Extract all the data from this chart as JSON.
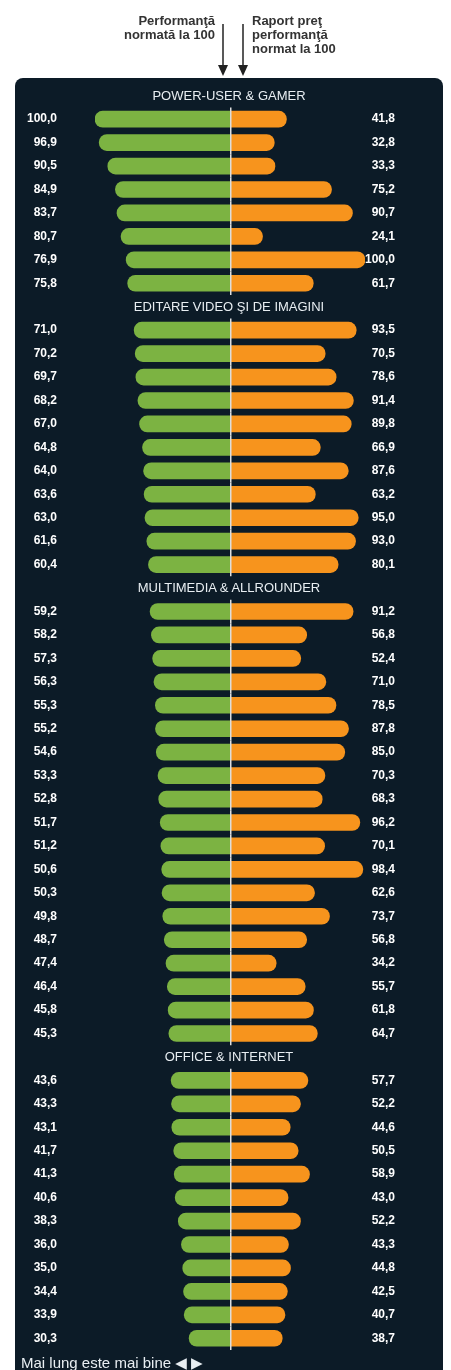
{
  "chart_data": [
    {
      "type": "bar",
      "orientation": "horizontal",
      "xlim": [
        100,
        0
      ],
      "legend": false,
      "categories": [
        "POWER-USER & GAMER",
        null,
        null,
        null,
        null,
        null,
        null,
        null,
        null,
        "EDITARE VIDEO ŞI DE IMAGINI",
        null,
        null,
        null,
        null,
        null,
        null,
        null,
        null,
        null,
        null,
        null,
        "MULTIMEDIA & ALLROUNDER",
        null,
        null,
        null,
        null,
        null,
        null,
        null,
        null,
        null,
        null,
        null,
        null,
        null,
        null,
        null,
        null,
        null,
        null,
        null,
        "OFFICE & INTERNET",
        null,
        null,
        null,
        null,
        null,
        null,
        null,
        null,
        null,
        null,
        null,
        null
      ],
      "series": [
        {
          "name": "Performanţă normată la 100",
          "color": "#7cb342",
          "values": [
            null,
            100.0,
            96.9,
            90.5,
            84.9,
            83.7,
            80.7,
            76.9,
            75.8,
            null,
            71.0,
            70.2,
            69.7,
            68.2,
            67.0,
            64.8,
            64.0,
            63.6,
            63.0,
            61.6,
            60.4,
            null,
            59.2,
            58.2,
            57.3,
            56.3,
            55.3,
            55.2,
            54.6,
            53.3,
            52.8,
            51.7,
            51.2,
            50.6,
            50.3,
            49.8,
            48.7,
            47.4,
            46.4,
            45.8,
            45.3,
            null,
            43.6,
            43.3,
            43.1,
            41.7,
            41.3,
            40.6,
            38.3,
            36.0,
            35.0,
            34.4,
            33.9,
            30.3
          ],
          "value_labels": [
            null,
            "100,0",
            "96,9",
            "90,5",
            "84,9",
            "83,7",
            "80,7",
            "76,9",
            "75,8",
            null,
            "71,0",
            "70,2",
            "69,7",
            "68,2",
            "67,0",
            "64,8",
            "64,0",
            "63,6",
            "63,0",
            "61,6",
            "60,4",
            null,
            "59,2",
            "58,2",
            "57,3",
            "56,3",
            "55,3",
            "55,2",
            "54,6",
            "53,3",
            "52,8",
            "51,7",
            "51,2",
            "50,6",
            "50,3",
            "49,8",
            "48,7",
            "47,4",
            "46,4",
            "45,8",
            "45,3",
            null,
            "43,6",
            "43,3",
            "43,1",
            "41,7",
            "41,3",
            "40,6",
            "38,3",
            "36,0",
            "35,0",
            "34,4",
            "33,9",
            "30,3"
          ]
        }
      ],
      "annotations": [
        "Mai lung este mai bine ◀ ▶"
      ]
    },
    {
      "type": "bar",
      "orientation": "horizontal",
      "xlim": [
        0,
        100
      ],
      "legend": false,
      "categories": [
        null,
        null,
        null,
        null,
        null,
        null,
        null,
        null,
        null,
        null,
        null,
        null,
        null,
        null,
        null,
        null,
        null,
        null,
        null,
        null,
        null,
        null,
        null,
        null,
        null,
        null,
        null,
        null,
        null,
        null,
        null,
        null,
        null,
        null,
        null,
        null,
        null,
        null,
        null,
        null,
        null,
        null,
        null,
        null,
        null,
        null,
        null,
        null,
        null,
        null,
        null,
        null,
        null,
        null
      ],
      "series": [
        {
          "name": "Raport preţ performanţă normat la 100",
          "color": "#f7941d",
          "values": [
            null,
            41.8,
            32.8,
            33.3,
            75.2,
            90.7,
            24.1,
            100.0,
            61.7,
            null,
            93.5,
            70.5,
            78.6,
            91.4,
            89.8,
            66.9,
            87.6,
            63.2,
            95.0,
            93.0,
            80.1,
            null,
            91.2,
            56.8,
            52.4,
            71.0,
            78.5,
            87.8,
            85.0,
            70.3,
            68.3,
            96.2,
            70.1,
            98.4,
            62.6,
            73.7,
            56.8,
            34.2,
            55.7,
            61.8,
            64.7,
            null,
            57.7,
            52.2,
            44.6,
            50.5,
            58.9,
            43.0,
            52.2,
            43.3,
            44.8,
            42.5,
            40.7,
            38.7
          ],
          "value_labels": [
            null,
            "41,8",
            "32,8",
            "33,3",
            "75,2",
            "90,7",
            "24,1",
            "100,0",
            "61,7",
            null,
            "93,5",
            "70,5",
            "78,6",
            "91,4",
            "89,8",
            "66,9",
            "87,6",
            "63,2",
            "95,0",
            "93,0",
            "80,1",
            null,
            "91,2",
            "56,8",
            "52,4",
            "71,0",
            "78,5",
            "87,8",
            "85,0",
            "70,3",
            "68,3",
            "96,2",
            "70,1",
            "98,4",
            "62,6",
            "73,7",
            "56,8",
            "34,2",
            "55,7",
            "61,8",
            "64,7",
            null,
            "57,7",
            "52,2",
            "44,6",
            "50,5",
            "58,9",
            "43,0",
            "52,2",
            "43,3",
            "44,8",
            "42,5",
            "40,7",
            "38,7"
          ]
        }
      ]
    }
  ]
}
